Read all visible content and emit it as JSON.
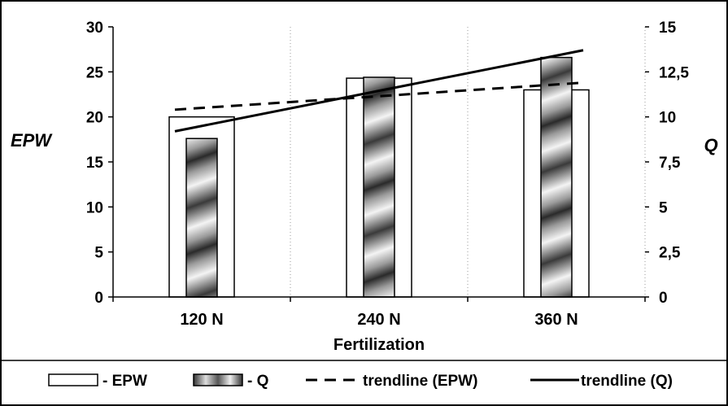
{
  "chart_data": {
    "type": "bar",
    "xlabel": "Fertilization",
    "ylabel_left": "EPW",
    "ylabel_right": "Q",
    "categories": [
      "120 N",
      "240 N",
      "360 N"
    ],
    "ylim_left": [
      0,
      30
    ],
    "yticks_left": [
      "0",
      "5",
      "10",
      "15",
      "20",
      "25",
      "30"
    ],
    "ylim_right": [
      0,
      15
    ],
    "yticks_right": [
      "0",
      "2,5",
      "5",
      "7,5",
      "10",
      "12,5",
      "15"
    ],
    "grid": "vertical-dotted",
    "legend_position": "bottom",
    "series": [
      {
        "name": "- EPW",
        "axis": "left",
        "values": [
          20,
          24.3,
          23
        ]
      },
      {
        "name": "- Q",
        "axis": "right",
        "values": [
          8.8,
          12.2,
          13.3
        ]
      }
    ],
    "trendlines": [
      {
        "name": "trendline (EPW)",
        "axis": "left",
        "style": "dashed",
        "start": 20.8,
        "end": 23.8
      },
      {
        "name": "trendline (Q)",
        "axis": "right",
        "style": "solid",
        "start": 9.2,
        "end": 13.7
      }
    ]
  }
}
